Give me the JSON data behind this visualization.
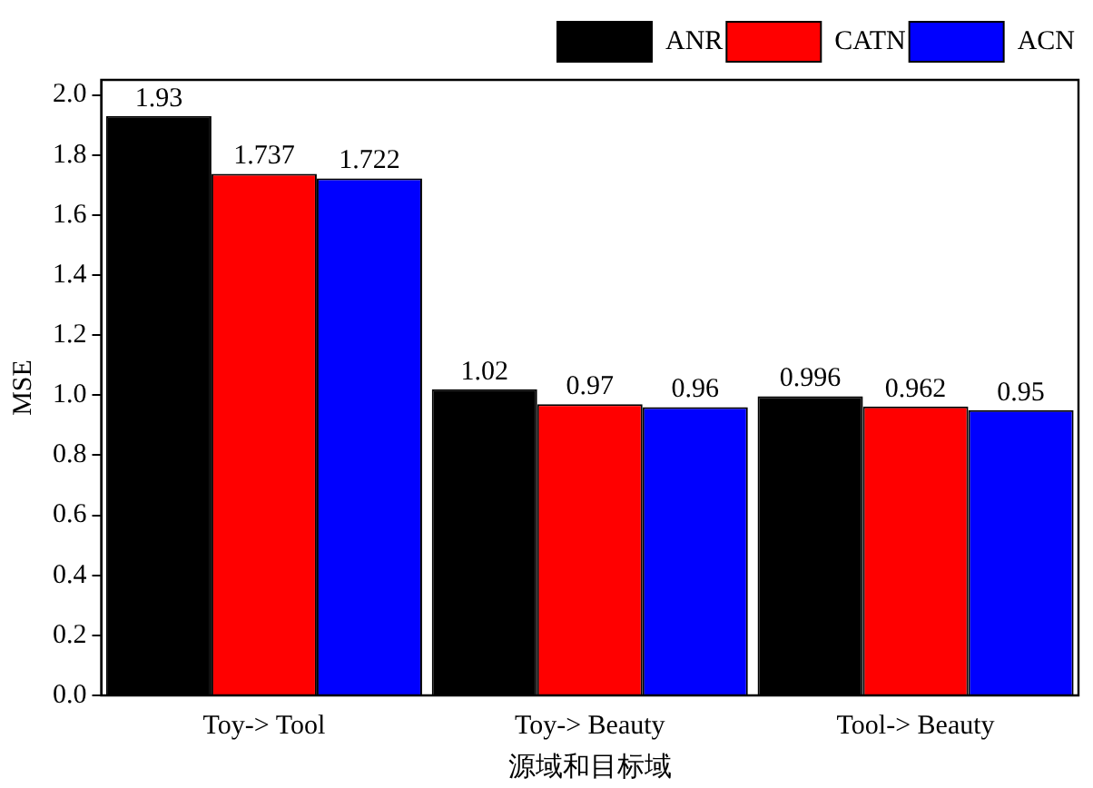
{
  "chart_data": {
    "type": "bar",
    "xlabel": "源域和目标域",
    "ylabel": "MSE",
    "categories": [
      "Toy-> Tool",
      "Toy-> Beauty",
      "Tool-> Beauty"
    ],
    "series": [
      {
        "name": "ANR",
        "color": "#000000",
        "values": [
          1.93,
          1.02,
          0.996
        ]
      },
      {
        "name": "CATN",
        "color": "#ff0000",
        "values": [
          1.737,
          0.97,
          0.962
        ]
      },
      {
        "name": "ACN",
        "color": "#0000ff",
        "values": [
          1.722,
          0.96,
          0.95
        ]
      }
    ],
    "ylim": [
      0,
      2.05
    ],
    "yticks": [
      {
        "value": 0,
        "label": "0.0"
      },
      {
        "value": 0.2,
        "label": "0.2"
      },
      {
        "value": 0.4,
        "label": "0.4"
      },
      {
        "value": 0.6,
        "label": "0.6"
      },
      {
        "value": 0.8,
        "label": "0.8"
      },
      {
        "value": 1,
        "label": "1.0"
      },
      {
        "value": 1.2,
        "label": "1.2"
      },
      {
        "value": 1.4,
        "label": "1.4"
      },
      {
        "value": 1.6,
        "label": "1.6"
      },
      {
        "value": 1.8,
        "label": "1.8"
      },
      {
        "value": 2,
        "label": "2.0"
      }
    ],
    "data_labels": true,
    "legend": "top right",
    "grid": false
  }
}
